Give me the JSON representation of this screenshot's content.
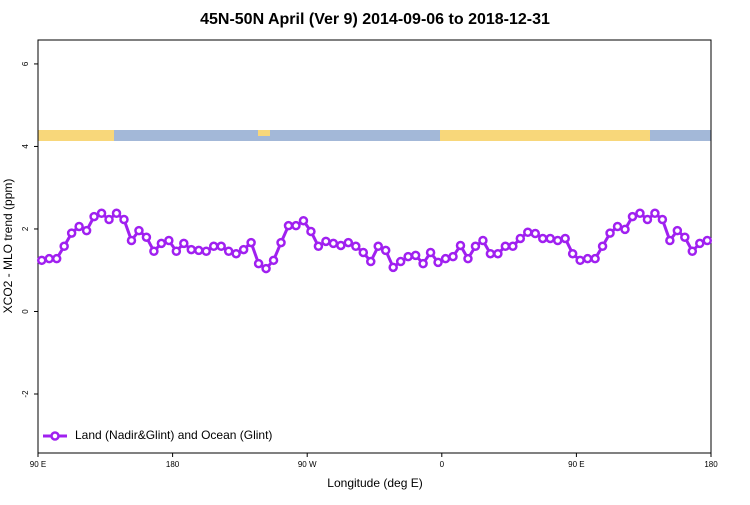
{
  "chart_data": {
    "type": "line",
    "title": "45N-50N April (Ver 9)   2014-09-06 to 2018-12-31",
    "x_label": "Longitude (deg E)",
    "y_label": "XCO2 - MLO trend (ppm)",
    "xlim": [
      90,
      540
    ],
    "ylim": [
      -3.43,
      6.58
    ],
    "xticks": [
      {
        "value": 90,
        "label": "90 E"
      },
      {
        "value": 180,
        "label": "180"
      },
      {
        "value": 270,
        "label": "90 W"
      },
      {
        "value": 360,
        "label": "0"
      },
      {
        "value": 450,
        "label": "90 E"
      },
      {
        "value": 540,
        "label": "180"
      }
    ],
    "yticks": [
      -2,
      0,
      2,
      4,
      6
    ],
    "legend": "bottomleft",
    "x": [
      92.5,
      97.5,
      102.5,
      107.5,
      112.5,
      117.5,
      122.5,
      127.5,
      132.5,
      137.5,
      142.5,
      147.5,
      152.5,
      157.5,
      162.5,
      167.5,
      172.5,
      177.5,
      182.5,
      187.5,
      192.5,
      197.5,
      202.5,
      207.5,
      212.5,
      217.5,
      222.5,
      227.5,
      232.5,
      237.5,
      242.5,
      247.5,
      252.5,
      257.5,
      262.5,
      267.5,
      272.5,
      277.5,
      282.5,
      287.5,
      292.5,
      297.5,
      302.5,
      307.5,
      312.5,
      317.5,
      322.5,
      327.5,
      332.5,
      337.5,
      342.5,
      347.5,
      352.5,
      357.5,
      362.5,
      367.5,
      372.5,
      377.5,
      382.5,
      387.5,
      392.5,
      397.5,
      402.5,
      407.5,
      412.5,
      417.5,
      422.5,
      427.5,
      432.5,
      437.5,
      442.5,
      447.5,
      452.5,
      457.5,
      462.5,
      467.5,
      472.5,
      477.5,
      482.5,
      487.5,
      492.5,
      497.5,
      502.5,
      507.5,
      512.5,
      517.5,
      522.5,
      527.5,
      532.5,
      537.5
    ],
    "series": [
      {
        "name": "Land (Nadir&Glint) and Ocean (Glint)",
        "color": "#a020f0",
        "values": [
          1.24,
          1.28,
          1.28,
          1.58,
          1.9,
          2.06,
          1.96,
          2.3,
          2.38,
          2.23,
          2.38,
          2.23,
          1.72,
          1.96,
          1.8,
          1.46,
          1.65,
          1.72,
          1.46,
          1.65,
          1.5,
          1.48,
          1.46,
          1.58,
          1.58,
          1.46,
          1.4,
          1.5,
          1.67,
          1.16,
          1.04,
          1.24,
          1.67,
          2.08,
          2.08,
          2.2,
          1.94,
          1.58,
          1.7,
          1.65,
          1.6,
          1.67,
          1.58,
          1.43,
          1.21,
          1.58,
          1.48,
          1.07,
          1.21,
          1.33,
          1.36,
          1.16,
          1.43,
          1.19,
          1.28,
          1.33,
          1.6,
          1.28,
          1.58,
          1.72,
          1.4,
          1.4,
          1.58,
          1.58,
          1.77,
          1.92,
          1.89,
          1.77,
          1.77,
          1.72,
          1.77,
          1.4,
          1.24,
          1.28,
          1.28,
          1.58,
          1.9,
          2.06,
          1.99,
          2.3,
          2.38,
          2.23,
          2.38,
          2.23,
          1.72,
          1.96,
          1.8,
          1.46,
          1.65,
          1.72
        ]
      }
    ]
  }
}
